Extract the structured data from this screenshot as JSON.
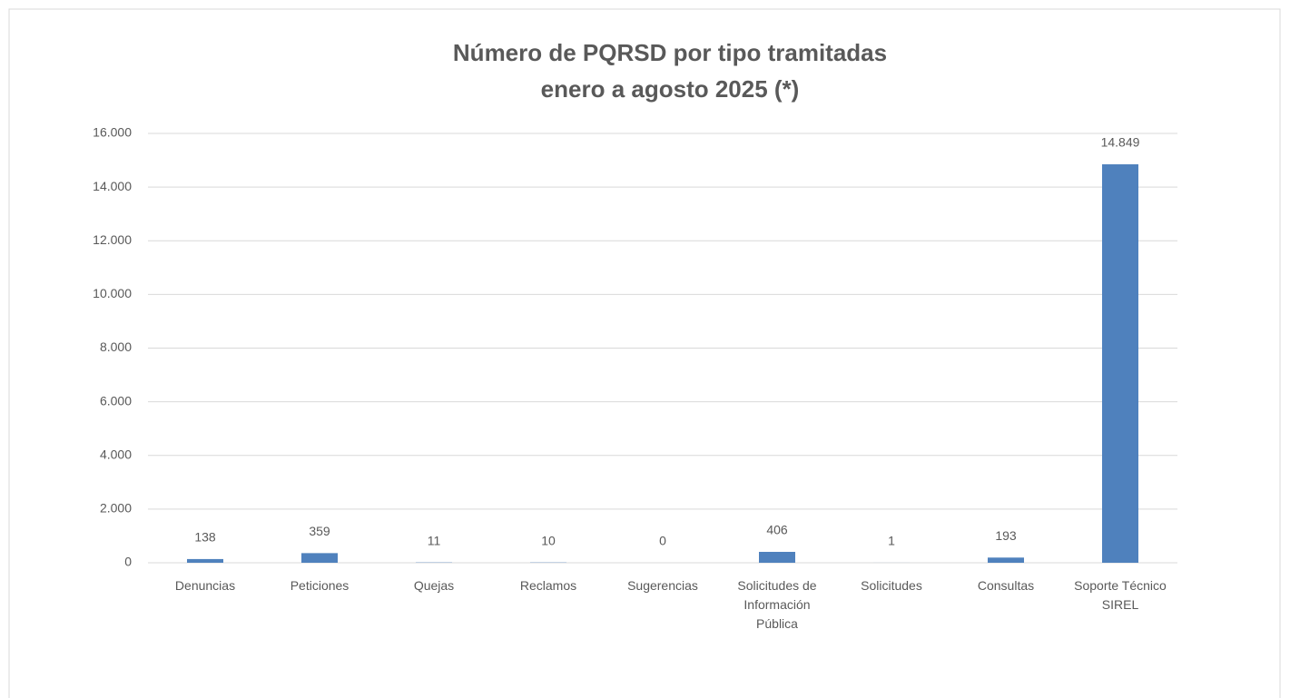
{
  "chart_data": {
    "type": "bar",
    "title": "Número de PQRSD por tipo tramitadas",
    "subtitle": "enero a agosto 2025 (*)",
    "categories": [
      "Denuncias",
      "Peticiones",
      "Quejas",
      "Reclamos",
      "Sugerencias",
      "Solicitudes de Información Pública",
      "Solicitudes",
      "Consultas",
      "Soporte Técnico SIREL"
    ],
    "values": [
      138,
      359,
      11,
      10,
      0,
      406,
      1,
      193,
      14849
    ],
    "value_labels": [
      "138",
      "359",
      "11",
      "10",
      "0",
      "406",
      "1",
      "193",
      "14.849"
    ],
    "color": "#4f81bd",
    "ylim": [
      0,
      16000
    ],
    "yticks": [
      0,
      {
        "value": 2000,
        "label": "2.000"
      },
      {
        "value": 4000,
        "label": "4.000"
      },
      {
        "value": 6000,
        "label": "6.000"
      },
      {
        "value": 8000,
        "label": "8.000"
      },
      {
        "value": 10000,
        "label": "10.000"
      },
      {
        "value": 12000,
        "label": "12.000"
      },
      {
        "value": 14000,
        "label": "14.000"
      },
      {
        "value": 16000,
        "label": "16.000"
      }
    ],
    "grid": true
  }
}
